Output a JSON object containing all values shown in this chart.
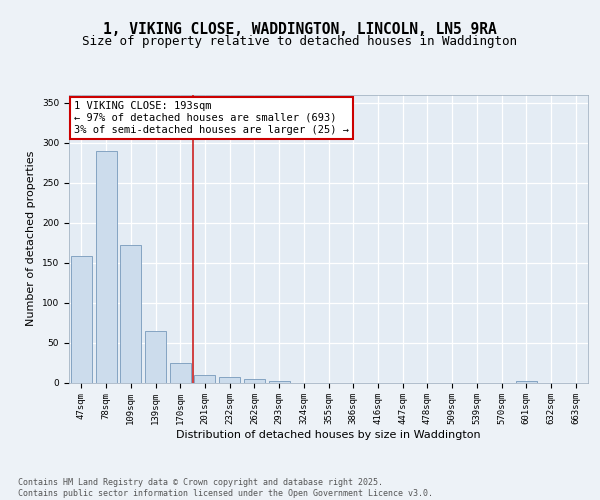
{
  "title_line1": "1, VIKING CLOSE, WADDINGTON, LINCOLN, LN5 9RA",
  "title_line2": "Size of property relative to detached houses in Waddington",
  "xlabel": "Distribution of detached houses by size in Waddington",
  "ylabel": "Number of detached properties",
  "categories": [
    "47sqm",
    "78sqm",
    "109sqm",
    "139sqm",
    "170sqm",
    "201sqm",
    "232sqm",
    "262sqm",
    "293sqm",
    "324sqm",
    "355sqm",
    "386sqm",
    "416sqm",
    "447sqm",
    "478sqm",
    "509sqm",
    "539sqm",
    "570sqm",
    "601sqm",
    "632sqm",
    "663sqm"
  ],
  "values": [
    158,
    290,
    172,
    65,
    25,
    10,
    7,
    4,
    2,
    0,
    0,
    0,
    0,
    0,
    0,
    0,
    0,
    0,
    2,
    0,
    0
  ],
  "bar_color": "#ccdcec",
  "bar_edge_color": "#7799bb",
  "annotation_text": "1 VIKING CLOSE: 193sqm\n← 97% of detached houses are smaller (693)\n3% of semi-detached houses are larger (25) →",
  "vline_x": 4.5,
  "ylim": [
    0,
    360
  ],
  "yticks": [
    0,
    50,
    100,
    150,
    200,
    250,
    300,
    350
  ],
  "fig_bg_color": "#edf2f7",
  "plot_bg_color": "#e4ecf4",
  "grid_color": "#ffffff",
  "vline_color": "#cc2222",
  "ann_box_edge": "#cc0000",
  "footer_text": "Contains HM Land Registry data © Crown copyright and database right 2025.\nContains public sector information licensed under the Open Government Licence v3.0.",
  "title_fontsize": 10.5,
  "subtitle_fontsize": 9,
  "ylabel_fontsize": 8,
  "xlabel_fontsize": 8,
  "tick_fontsize": 6.5,
  "annotation_fontsize": 7.5,
  "footer_fontsize": 6
}
